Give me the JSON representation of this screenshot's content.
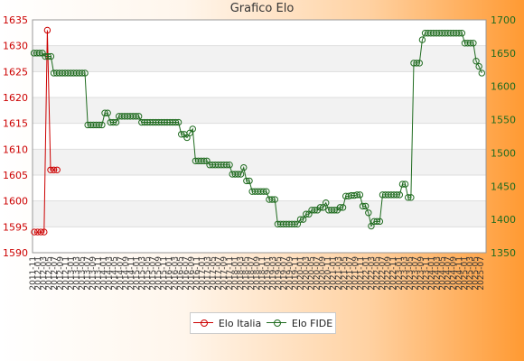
{
  "title": "Grafico Elo",
  "legend": {
    "italia": "Elo Italia",
    "fide": "Elo FIDE"
  },
  "colors": {
    "italia": "#cc0000",
    "fide": "#1f6b1f"
  },
  "chart_data": {
    "type": "line",
    "title": "Grafico Elo",
    "grid": true,
    "legend_position": "bottom-center",
    "y_left": {
      "series": "Elo Italia",
      "ylim": [
        1590,
        1635
      ],
      "ticks": [
        1590,
        1595,
        1600,
        1605,
        1610,
        1615,
        1620,
        1625,
        1630,
        1635
      ]
    },
    "y_right": {
      "series": "Elo FIDE",
      "ylim": [
        1350,
        1700
      ],
      "ticks": [
        1350,
        1400,
        1450,
        1500,
        1550,
        1600,
        1650,
        1700
      ]
    },
    "series": [
      {
        "name": "Elo Italia",
        "values": [
          1594,
          1594,
          1594,
          1594,
          1633,
          1606,
          1606,
          1606
        ]
      },
      {
        "name": "Elo FIDE",
        "values": [
          1650,
          1650,
          1650,
          1650,
          1645,
          1645,
          1645,
          1620,
          1620,
          1620,
          1620,
          1620,
          1620,
          1620,
          1620,
          1620,
          1620,
          1620,
          1620,
          1542,
          1542,
          1542,
          1542,
          1542,
          1542,
          1560,
          1560,
          1546,
          1546,
          1546,
          1555,
          1555,
          1555,
          1555,
          1555,
          1555,
          1555,
          1555,
          1546,
          1546,
          1546,
          1546,
          1546,
          1546,
          1546,
          1546,
          1546,
          1546,
          1546,
          1546,
          1546,
          1546,
          1528,
          1528,
          1523,
          1530,
          1536,
          1488,
          1488,
          1488,
          1488,
          1488,
          1482,
          1482,
          1482,
          1482,
          1482,
          1482,
          1482,
          1482,
          1468,
          1468,
          1468,
          1468,
          1478,
          1458,
          1458,
          1442,
          1442,
          1442,
          1442,
          1442,
          1442,
          1430,
          1430,
          1430,
          1393,
          1393,
          1393,
          1393,
          1393,
          1393,
          1393,
          1393,
          1400,
          1400,
          1408,
          1408,
          1414,
          1414,
          1414,
          1418,
          1418,
          1425,
          1414,
          1414,
          1414,
          1414,
          1418,
          1418,
          1435,
          1435,
          1436,
          1436,
          1437,
          1437,
          1420,
          1420,
          1410,
          1390,
          1397,
          1397,
          1397,
          1437,
          1437,
          1437,
          1437,
          1437,
          1437,
          1437,
          1453,
          1453,
          1433,
          1433,
          1635,
          1635,
          1635,
          1670,
          1680,
          1680,
          1680,
          1680,
          1680,
          1680,
          1680,
          1680,
          1680,
          1680,
          1680,
          1680,
          1680,
          1680,
          1665,
          1665,
          1665,
          1665,
          1638,
          1630,
          1620
        ]
      }
    ],
    "xlabels": [
      "2011-11",
      "2012-01",
      "2012-03",
      "2012-05",
      "2012-07",
      "2012-09",
      "2012-11",
      "2013-01",
      "2013-03",
      "2013-05",
      "2013-07",
      "2013-09",
      "2013-11",
      "2014-01",
      "2014-03",
      "2014-05",
      "2014-07",
      "2014-09",
      "2014-11",
      "2015-01",
      "2015-03",
      "2015-05",
      "2015-07",
      "2015-09",
      "2015-11",
      "2016-01",
      "2016-03",
      "2016-05",
      "2016-07",
      "2016-09",
      "2016-11",
      "2017-01",
      "2017-03",
      "2017-05",
      "2017-07",
      "2017-09",
      "2017-11",
      "2018-01",
      "2018-03",
      "2018-05",
      "2018-07",
      "2018-09",
      "2018-11",
      "2019-01",
      "2019-03",
      "2019-05",
      "2019-07",
      "2019-09",
      "2019-11",
      "2020-01",
      "2020-03",
      "2020-05",
      "2020-07",
      "2020-09",
      "2020-11",
      "2021-01",
      "2021-03",
      "2021-05",
      "2021-07",
      "2021-09",
      "2021-11",
      "2022-01",
      "2022-03",
      "2022-05",
      "2022-07",
      "2022-09",
      "2022-11",
      "2023-01",
      "2023-03",
      "2023-05",
      "2023-07",
      "2023-09",
      "2023-11",
      "2024-01",
      "2024-03",
      "2024-05",
      "2024-07",
      "2024-09",
      "2024-11",
      "2025-01",
      "2025-03",
      "2025-05",
      "2025-07"
    ]
  }
}
